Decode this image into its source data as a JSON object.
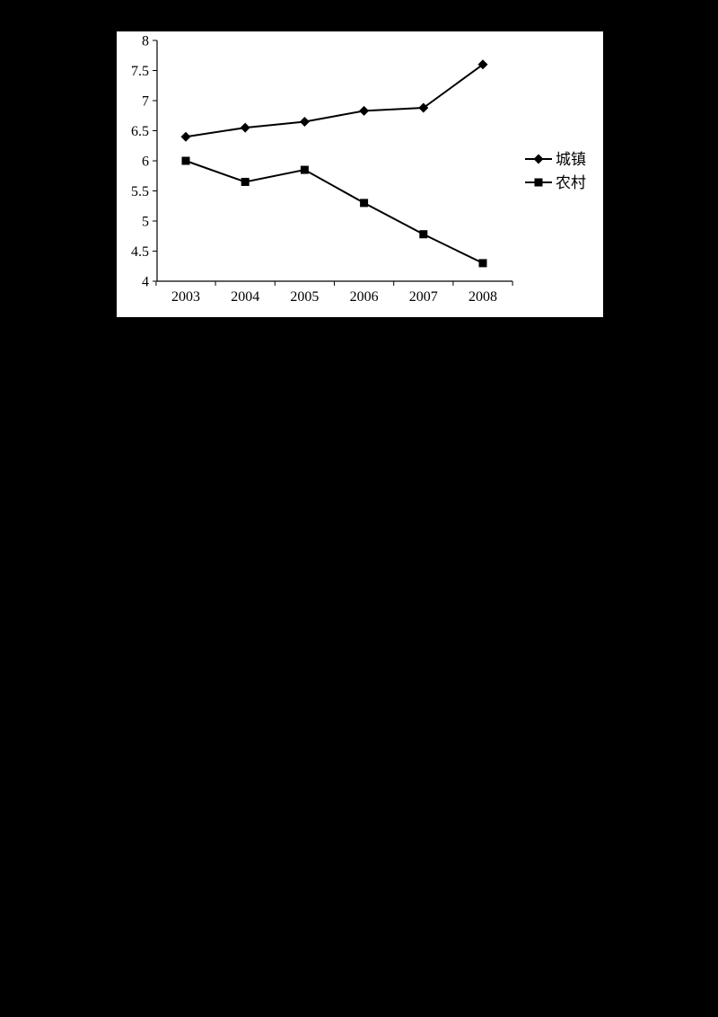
{
  "page": {
    "background_color": "#000000",
    "panel_background_color": "#ffffff"
  },
  "chart_data": {
    "type": "line",
    "title": "",
    "xlabel": "",
    "ylabel": "",
    "categories": [
      "2003",
      "2004",
      "2005",
      "2006",
      "2007",
      "2008"
    ],
    "series": [
      {
        "name": "城镇",
        "marker": "diamond",
        "color": "#000000",
        "values": [
          6.4,
          6.55,
          6.65,
          6.83,
          6.88,
          7.6
        ]
      },
      {
        "name": "农村",
        "marker": "square",
        "color": "#000000",
        "values": [
          6.0,
          5.65,
          5.85,
          5.3,
          4.78,
          4.3
        ]
      }
    ],
    "ylim": [
      4,
      8
    ],
    "ytick_step": 0.5,
    "ytick_labels": [
      "4",
      "4.5",
      "5",
      "5.5",
      "6",
      "6.5",
      "7",
      "7.5",
      "8"
    ],
    "grid": false,
    "legend_position": "right",
    "axis_color": "#000000",
    "line_color": "#000000",
    "background": "#ffffff"
  }
}
